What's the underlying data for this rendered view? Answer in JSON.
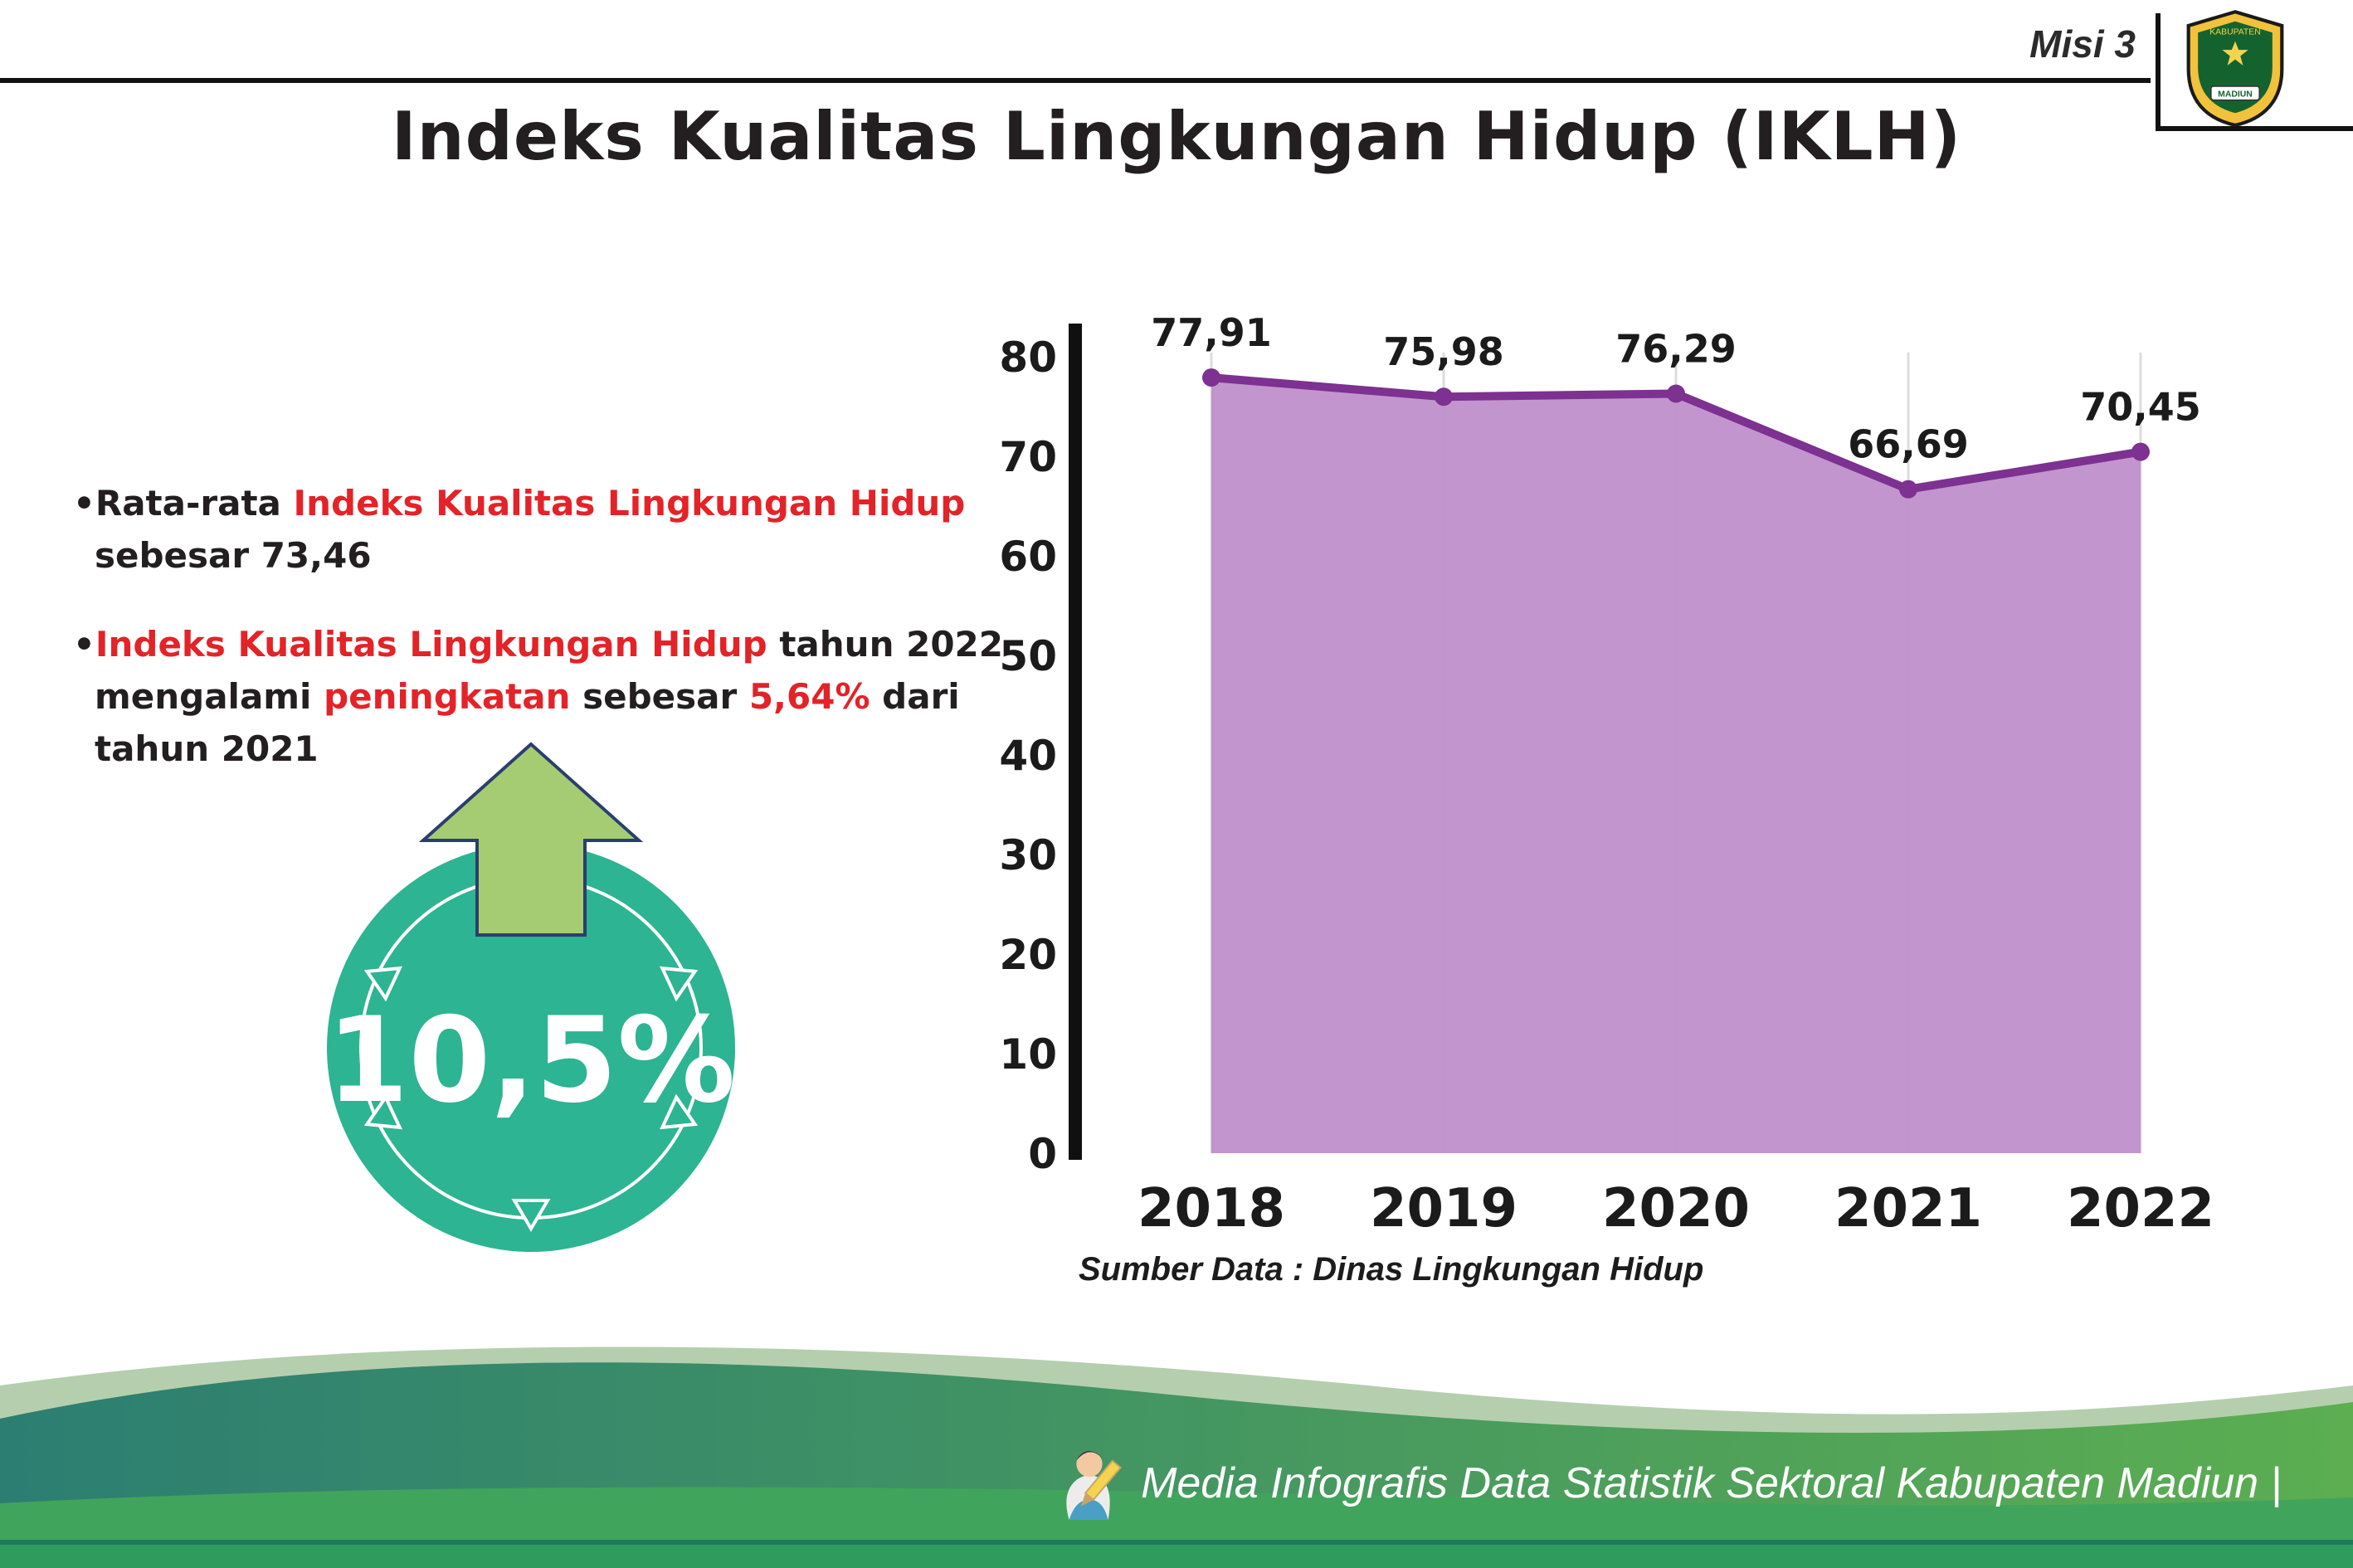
{
  "page": {
    "misi_label": "Misi 3",
    "title": "Indeks Kualitas Lingkungan Hidup (IKLH)",
    "source_note": "Sumber Data : Dinas Lingkungan Hidup",
    "footer_text": "Media Infografis Data Statistik Sektoral Kabupaten Madiun |"
  },
  "logo": {
    "top_text": "KABUPATEN",
    "bottom_text": "MADIUN"
  },
  "bullets": {
    "marker": "•",
    "b1": {
      "pre": "Rata-rata ",
      "red": "Indeks Kualitas Lingkungan Hidup",
      "post": " sebesar 73,46"
    },
    "b2": {
      "red1": "Indeks Kualitas Lingkungan Hidup",
      "mid1": " tahun 2022 mengalami ",
      "red2": "peningkatan",
      "mid2": " sebesar ",
      "red3": "5,64%",
      "post": " dari tahun 2021"
    }
  },
  "badge": {
    "value": "10,5%"
  },
  "colors": {
    "accent_red": "#e32328",
    "text_dark": "#231f20",
    "chart_line": "#7d3190",
    "chart_fill": "#c08fcb",
    "badge_teal": "#2db492",
    "arrow_green": "#a6cc73",
    "footer_teal": "#2c7e72",
    "footer_green": "#5cae51"
  },
  "chart_data": {
    "type": "area",
    "title": "Indeks Kualitas Lingkungan Hidup (IKLH)",
    "categories": [
      "2018",
      "2019",
      "2020",
      "2021",
      "2022"
    ],
    "values": [
      77.91,
      75.98,
      76.29,
      66.69,
      70.45
    ],
    "value_labels": [
      "77,91",
      "75,98",
      "76,29",
      "66,69",
      "70,45"
    ],
    "ylim": [
      0,
      80
    ],
    "yticks": [
      0,
      10,
      20,
      30,
      40,
      50,
      60,
      70,
      80
    ],
    "grid": "vertical",
    "legend": "none",
    "line_color": "#7d3190",
    "fill_color": "#c08fcb",
    "source": "Sumber Data : Dinas Lingkungan Hidup"
  }
}
